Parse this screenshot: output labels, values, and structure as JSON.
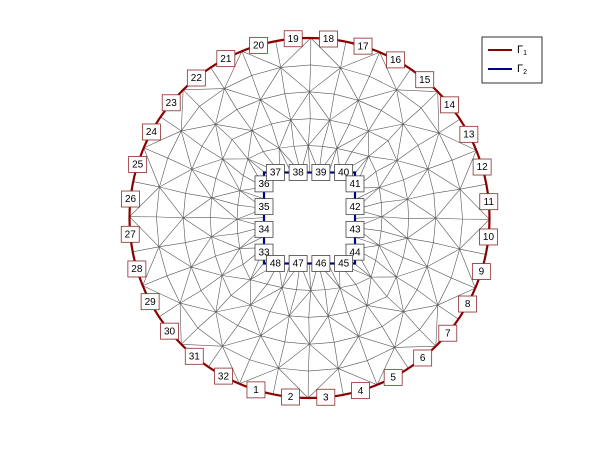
{
  "outer_edges": [
    "1",
    "2",
    "3",
    "4",
    "5",
    "6",
    "7",
    "8",
    "9",
    "10",
    "11",
    "12",
    "13",
    "14",
    "15",
    "16",
    "17",
    "18",
    "19",
    "20",
    "21",
    "22",
    "23",
    "24",
    "25",
    "26",
    "27",
    "28",
    "29",
    "30",
    "31",
    "32"
  ],
  "inner_edges": [
    "33",
    "34",
    "35",
    "36",
    "37",
    "38",
    "39",
    "40",
    "41",
    "42",
    "43",
    "44",
    "45",
    "46",
    "47",
    "48"
  ],
  "legend": [
    {
      "symbol": "Γ",
      "sub": "1",
      "color": "#8b0000"
    },
    {
      "symbol": "Γ",
      "sub": "2",
      "color": "#00008b"
    }
  ]
}
